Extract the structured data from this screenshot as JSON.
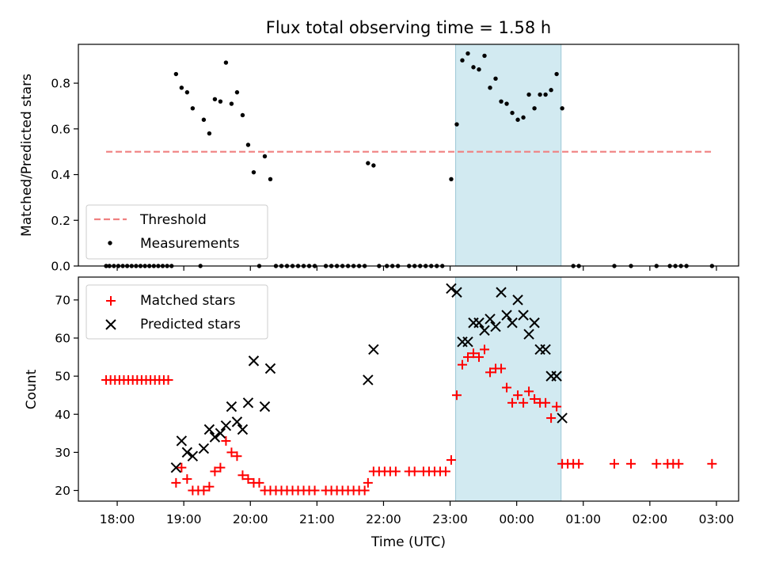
{
  "title": "Flux total observing time = 1.58 h",
  "chart_data": [
    {
      "type": "scatter",
      "panel": "top",
      "ylabel": "Matched/Predicted stars",
      "xlabel": "",
      "xlim": [
        "17:25",
        "03:20"
      ],
      "ylim": [
        0.0,
        0.97
      ],
      "y_ticks": [
        0.0,
        0.2,
        0.4,
        0.6,
        0.8
      ],
      "y_tick_labels": [
        "0.0",
        "0.2",
        "0.4",
        "0.6",
        "0.8"
      ],
      "highlight_span": {
        "start": "23:05",
        "end": "00:40",
        "color": "#add8e6"
      },
      "threshold": {
        "name": "Threshold",
        "y": 0.5,
        "x_range": [
          "17:50",
          "02:57"
        ],
        "color": "#f08080",
        "style": "dashed"
      },
      "legend": {
        "placement": "lower left",
        "entries": [
          "Threshold",
          "Measurements"
        ]
      },
      "series": [
        {
          "name": "Measurements",
          "marker": "dot",
          "color": "#000000",
          "points": [
            [
              "17:50",
              0.0
            ],
            [
              "17:53",
              0.0
            ],
            [
              "17:57",
              0.0
            ],
            [
              "18:01",
              0.0
            ],
            [
              "18:05",
              0.0
            ],
            [
              "18:09",
              0.0
            ],
            [
              "18:13",
              0.0
            ],
            [
              "18:17",
              0.0
            ],
            [
              "18:21",
              0.0
            ],
            [
              "18:25",
              0.0
            ],
            [
              "18:29",
              0.0
            ],
            [
              "18:33",
              0.0
            ],
            [
              "18:37",
              0.0
            ],
            [
              "18:41",
              0.0
            ],
            [
              "18:45",
              0.0
            ],
            [
              "18:49",
              0.0
            ],
            [
              "18:53",
              0.84
            ],
            [
              "18:58",
              0.78
            ],
            [
              "19:03",
              0.76
            ],
            [
              "19:08",
              0.69
            ],
            [
              "19:15",
              0.0
            ],
            [
              "19:18",
              0.64
            ],
            [
              "19:23",
              0.58
            ],
            [
              "19:28",
              0.73
            ],
            [
              "19:33",
              0.72
            ],
            [
              "19:38",
              0.89
            ],
            [
              "19:43",
              0.71
            ],
            [
              "19:48",
              0.76
            ],
            [
              "19:53",
              0.66
            ],
            [
              "19:58",
              0.53
            ],
            [
              "20:03",
              0.41
            ],
            [
              "20:08",
              0.0
            ],
            [
              "20:13",
              0.48
            ],
            [
              "20:18",
              0.38
            ],
            [
              "20:23",
              0.0
            ],
            [
              "20:28",
              0.0
            ],
            [
              "20:33",
              0.0
            ],
            [
              "20:38",
              0.0
            ],
            [
              "20:43",
              0.0
            ],
            [
              "20:48",
              0.0
            ],
            [
              "20:53",
              0.0
            ],
            [
              "20:58",
              0.0
            ],
            [
              "21:08",
              0.0
            ],
            [
              "21:13",
              0.0
            ],
            [
              "21:18",
              0.0
            ],
            [
              "21:23",
              0.0
            ],
            [
              "21:28",
              0.0
            ],
            [
              "21:33",
              0.0
            ],
            [
              "21:38",
              0.0
            ],
            [
              "21:43",
              0.0
            ],
            [
              "21:46",
              0.45
            ],
            [
              "21:51",
              0.44
            ],
            [
              "21:56",
              0.0
            ],
            [
              "22:03",
              0.0
            ],
            [
              "22:08",
              0.0
            ],
            [
              "22:13",
              0.0
            ],
            [
              "22:23",
              0.0
            ],
            [
              "22:28",
              0.0
            ],
            [
              "22:33",
              0.0
            ],
            [
              "22:38",
              0.0
            ],
            [
              "22:43",
              0.0
            ],
            [
              "22:48",
              0.0
            ],
            [
              "22:53",
              0.0
            ],
            [
              "23:01",
              0.38
            ],
            [
              "23:06",
              0.62
            ],
            [
              "23:11",
              0.9
            ],
            [
              "23:16",
              0.93
            ],
            [
              "23:21",
              0.87
            ],
            [
              "23:26",
              0.86
            ],
            [
              "23:31",
              0.92
            ],
            [
              "23:36",
              0.78
            ],
            [
              "23:41",
              0.82
            ],
            [
              "23:46",
              0.72
            ],
            [
              "23:51",
              0.71
            ],
            [
              "23:56",
              0.67
            ],
            [
              "00:01",
              0.64
            ],
            [
              "00:06",
              0.65
            ],
            [
              "00:11",
              0.75
            ],
            [
              "00:16",
              0.69
            ],
            [
              "00:21",
              0.75
            ],
            [
              "00:26",
              0.75
            ],
            [
              "00:31",
              0.77
            ],
            [
              "00:36",
              0.84
            ],
            [
              "00:41",
              0.69
            ],
            [
              "00:51",
              0.0
            ],
            [
              "00:56",
              0.0
            ],
            [
              "01:28",
              0.0
            ],
            [
              "01:43",
              0.0
            ],
            [
              "02:06",
              0.0
            ],
            [
              "02:18",
              0.0
            ],
            [
              "02:23",
              0.0
            ],
            [
              "02:28",
              0.0
            ],
            [
              "02:33",
              0.0
            ],
            [
              "02:56",
              0.0
            ]
          ]
        }
      ]
    },
    {
      "type": "scatter",
      "panel": "bottom",
      "ylabel": "Count",
      "xlabel": "Time (UTC)",
      "xlim": [
        "17:25",
        "03:20"
      ],
      "ylim": [
        17.2,
        76
      ],
      "y_ticks": [
        20,
        30,
        40,
        50,
        60,
        70
      ],
      "y_tick_labels": [
        "20",
        "30",
        "40",
        "50",
        "60",
        "70"
      ],
      "x_ticks": [
        "18:00",
        "19:00",
        "20:00",
        "21:00",
        "22:00",
        "23:00",
        "00:00",
        "01:00",
        "02:00",
        "03:00"
      ],
      "x_tick_labels": [
        "18:00",
        "19:00",
        "20:00",
        "21:00",
        "22:00",
        "23:00",
        "00:00",
        "01:00",
        "02:00",
        "03:00"
      ],
      "highlight_span": {
        "start": "23:05",
        "end": "00:40",
        "color": "#add8e6"
      },
      "legend": {
        "placement": "upper left",
        "entries": [
          "Matched stars",
          "Predicted stars"
        ]
      },
      "series": [
        {
          "name": "Matched stars",
          "marker": "plus",
          "color": "#ff0000",
          "points": [
            [
              "17:50",
              49
            ],
            [
              "17:54",
              49
            ],
            [
              "17:58",
              49
            ],
            [
              "18:02",
              49
            ],
            [
              "18:06",
              49
            ],
            [
              "18:10",
              49
            ],
            [
              "18:14",
              49
            ],
            [
              "18:18",
              49
            ],
            [
              "18:22",
              49
            ],
            [
              "18:26",
              49
            ],
            [
              "18:30",
              49
            ],
            [
              "18:34",
              49
            ],
            [
              "18:38",
              49
            ],
            [
              "18:42",
              49
            ],
            [
              "18:46",
              49
            ],
            [
              "18:53",
              22
            ],
            [
              "18:58",
              26
            ],
            [
              "19:03",
              23
            ],
            [
              "19:08",
              20
            ],
            [
              "19:13",
              20
            ],
            [
              "19:18",
              20
            ],
            [
              "19:23",
              21
            ],
            [
              "19:28",
              25
            ],
            [
              "19:33",
              26
            ],
            [
              "19:38",
              33
            ],
            [
              "19:43",
              30
            ],
            [
              "19:48",
              29
            ],
            [
              "19:53",
              24
            ],
            [
              "19:58",
              23
            ],
            [
              "20:03",
              22
            ],
            [
              "20:08",
              22
            ],
            [
              "20:13",
              20
            ],
            [
              "20:18",
              20
            ],
            [
              "20:23",
              20
            ],
            [
              "20:28",
              20
            ],
            [
              "20:33",
              20
            ],
            [
              "20:38",
              20
            ],
            [
              "20:43",
              20
            ],
            [
              "20:48",
              20
            ],
            [
              "20:53",
              20
            ],
            [
              "20:58",
              20
            ],
            [
              "21:08",
              20
            ],
            [
              "21:13",
              20
            ],
            [
              "21:18",
              20
            ],
            [
              "21:23",
              20
            ],
            [
              "21:28",
              20
            ],
            [
              "21:33",
              20
            ],
            [
              "21:38",
              20
            ],
            [
              "21:43",
              20
            ],
            [
              "21:46",
              22
            ],
            [
              "21:51",
              25
            ],
            [
              "21:56",
              25
            ],
            [
              "22:01",
              25
            ],
            [
              "22:06",
              25
            ],
            [
              "22:11",
              25
            ],
            [
              "22:23",
              25
            ],
            [
              "22:28",
              25
            ],
            [
              "22:36",
              25
            ],
            [
              "22:41",
              25
            ],
            [
              "22:46",
              25
            ],
            [
              "22:51",
              25
            ],
            [
              "22:56",
              25
            ],
            [
              "23:01",
              28
            ],
            [
              "23:06",
              45
            ],
            [
              "23:11",
              53
            ],
            [
              "23:16",
              55
            ],
            [
              "23:21",
              56
            ],
            [
              "23:26",
              55
            ],
            [
              "23:31",
              57
            ],
            [
              "23:36",
              51
            ],
            [
              "23:41",
              52
            ],
            [
              "23:46",
              52
            ],
            [
              "23:51",
              47
            ],
            [
              "23:56",
              43
            ],
            [
              "00:01",
              45
            ],
            [
              "00:06",
              43
            ],
            [
              "00:11",
              46
            ],
            [
              "00:16",
              44
            ],
            [
              "00:21",
              43
            ],
            [
              "00:26",
              43
            ],
            [
              "00:31",
              39
            ],
            [
              "00:36",
              42
            ],
            [
              "00:41",
              27
            ],
            [
              "00:46",
              27
            ],
            [
              "00:51",
              27
            ],
            [
              "00:56",
              27
            ],
            [
              "01:28",
              27
            ],
            [
              "01:43",
              27
            ],
            [
              "02:06",
              27
            ],
            [
              "02:16",
              27
            ],
            [
              "02:21",
              27
            ],
            [
              "02:26",
              27
            ],
            [
              "02:56",
              27
            ]
          ]
        },
        {
          "name": "Predicted stars",
          "marker": "x",
          "color": "#000000",
          "points": [
            [
              "18:53",
              26
            ],
            [
              "18:58",
              33
            ],
            [
              "19:03",
              30
            ],
            [
              "19:08",
              29
            ],
            [
              "19:18",
              31
            ],
            [
              "19:23",
              36
            ],
            [
              "19:28",
              34
            ],
            [
              "19:33",
              35
            ],
            [
              "19:38",
              37
            ],
            [
              "19:43",
              42
            ],
            [
              "19:48",
              38
            ],
            [
              "19:53",
              36
            ],
            [
              "19:58",
              43
            ],
            [
              "20:03",
              54
            ],
            [
              "20:13",
              42
            ],
            [
              "20:18",
              52
            ],
            [
              "21:46",
              49
            ],
            [
              "21:51",
              57
            ],
            [
              "23:01",
              73
            ],
            [
              "23:06",
              72
            ],
            [
              "23:11",
              59
            ],
            [
              "23:16",
              59
            ],
            [
              "23:21",
              64
            ],
            [
              "23:26",
              64
            ],
            [
              "23:31",
              62
            ],
            [
              "23:36",
              65
            ],
            [
              "23:41",
              63
            ],
            [
              "23:46",
              72
            ],
            [
              "23:51",
              66
            ],
            [
              "23:56",
              64
            ],
            [
              "00:01",
              70
            ],
            [
              "00:06",
              66
            ],
            [
              "00:11",
              61
            ],
            [
              "00:16",
              64
            ],
            [
              "00:21",
              57
            ],
            [
              "00:26",
              57
            ],
            [
              "00:31",
              50
            ],
            [
              "00:36",
              50
            ],
            [
              "00:41",
              39
            ]
          ]
        }
      ]
    }
  ]
}
